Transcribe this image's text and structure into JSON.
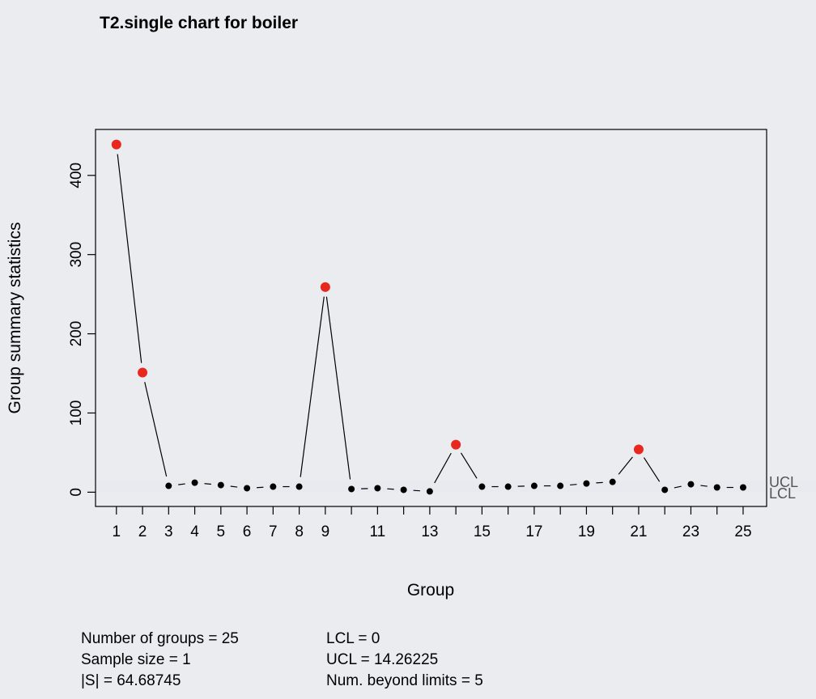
{
  "chart_data": {
    "type": "line",
    "title": "T2.single chart for boiler",
    "xlabel": "Group",
    "ylabel": "Group summary statistics",
    "xlim": [
      0.2,
      25.9
    ],
    "ylim": [
      -18,
      458
    ],
    "x_tick_labels": [
      "1",
      "2",
      "3",
      "4",
      "5",
      "6",
      "7",
      "8",
      "9",
      "11",
      "13",
      "15",
      "17",
      "19",
      "21",
      "23",
      "25"
    ],
    "x_tick_label_positions": [
      1,
      2,
      3,
      4,
      5,
      6,
      7,
      8,
      9,
      11,
      13,
      15,
      17,
      19,
      21,
      23,
      25
    ],
    "x_ticks": [
      1,
      2,
      3,
      4,
      5,
      6,
      7,
      8,
      9,
      10,
      11,
      12,
      13,
      14,
      15,
      16,
      17,
      18,
      19,
      20,
      21,
      22,
      23,
      24,
      25
    ],
    "y_ticks": [
      0,
      100,
      200,
      300,
      400
    ],
    "y_tick_labels": [
      "0",
      "100",
      "200",
      "300",
      "400"
    ],
    "x": [
      1,
      2,
      3,
      4,
      5,
      6,
      7,
      8,
      9,
      10,
      11,
      12,
      13,
      14,
      15,
      16,
      17,
      18,
      19,
      20,
      21,
      22,
      23,
      24,
      25
    ],
    "values": [
      439,
      151,
      8,
      12,
      9,
      5,
      7,
      7,
      259,
      4,
      5,
      3,
      1,
      60,
      7,
      7,
      8,
      8,
      11,
      13,
      54,
      3,
      10,
      6,
      6
    ],
    "limits": {
      "lcl": 0,
      "ucl": 14.26225,
      "lcl_label": "LCL",
      "ucl_label": "UCL"
    },
    "beyond_limits_color": "#e8281e",
    "point_color": "#000000",
    "band_color": "#e9eaf0",
    "background_color": "#ebecf0",
    "grid": false,
    "legend": "none"
  },
  "stats": {
    "left": [
      "Number of groups = 25",
      "Sample size = 1",
      "|S| = 64.68745"
    ],
    "right": [
      "LCL = 0",
      "UCL = 14.26225",
      "Num. beyond limits = 5"
    ]
  }
}
